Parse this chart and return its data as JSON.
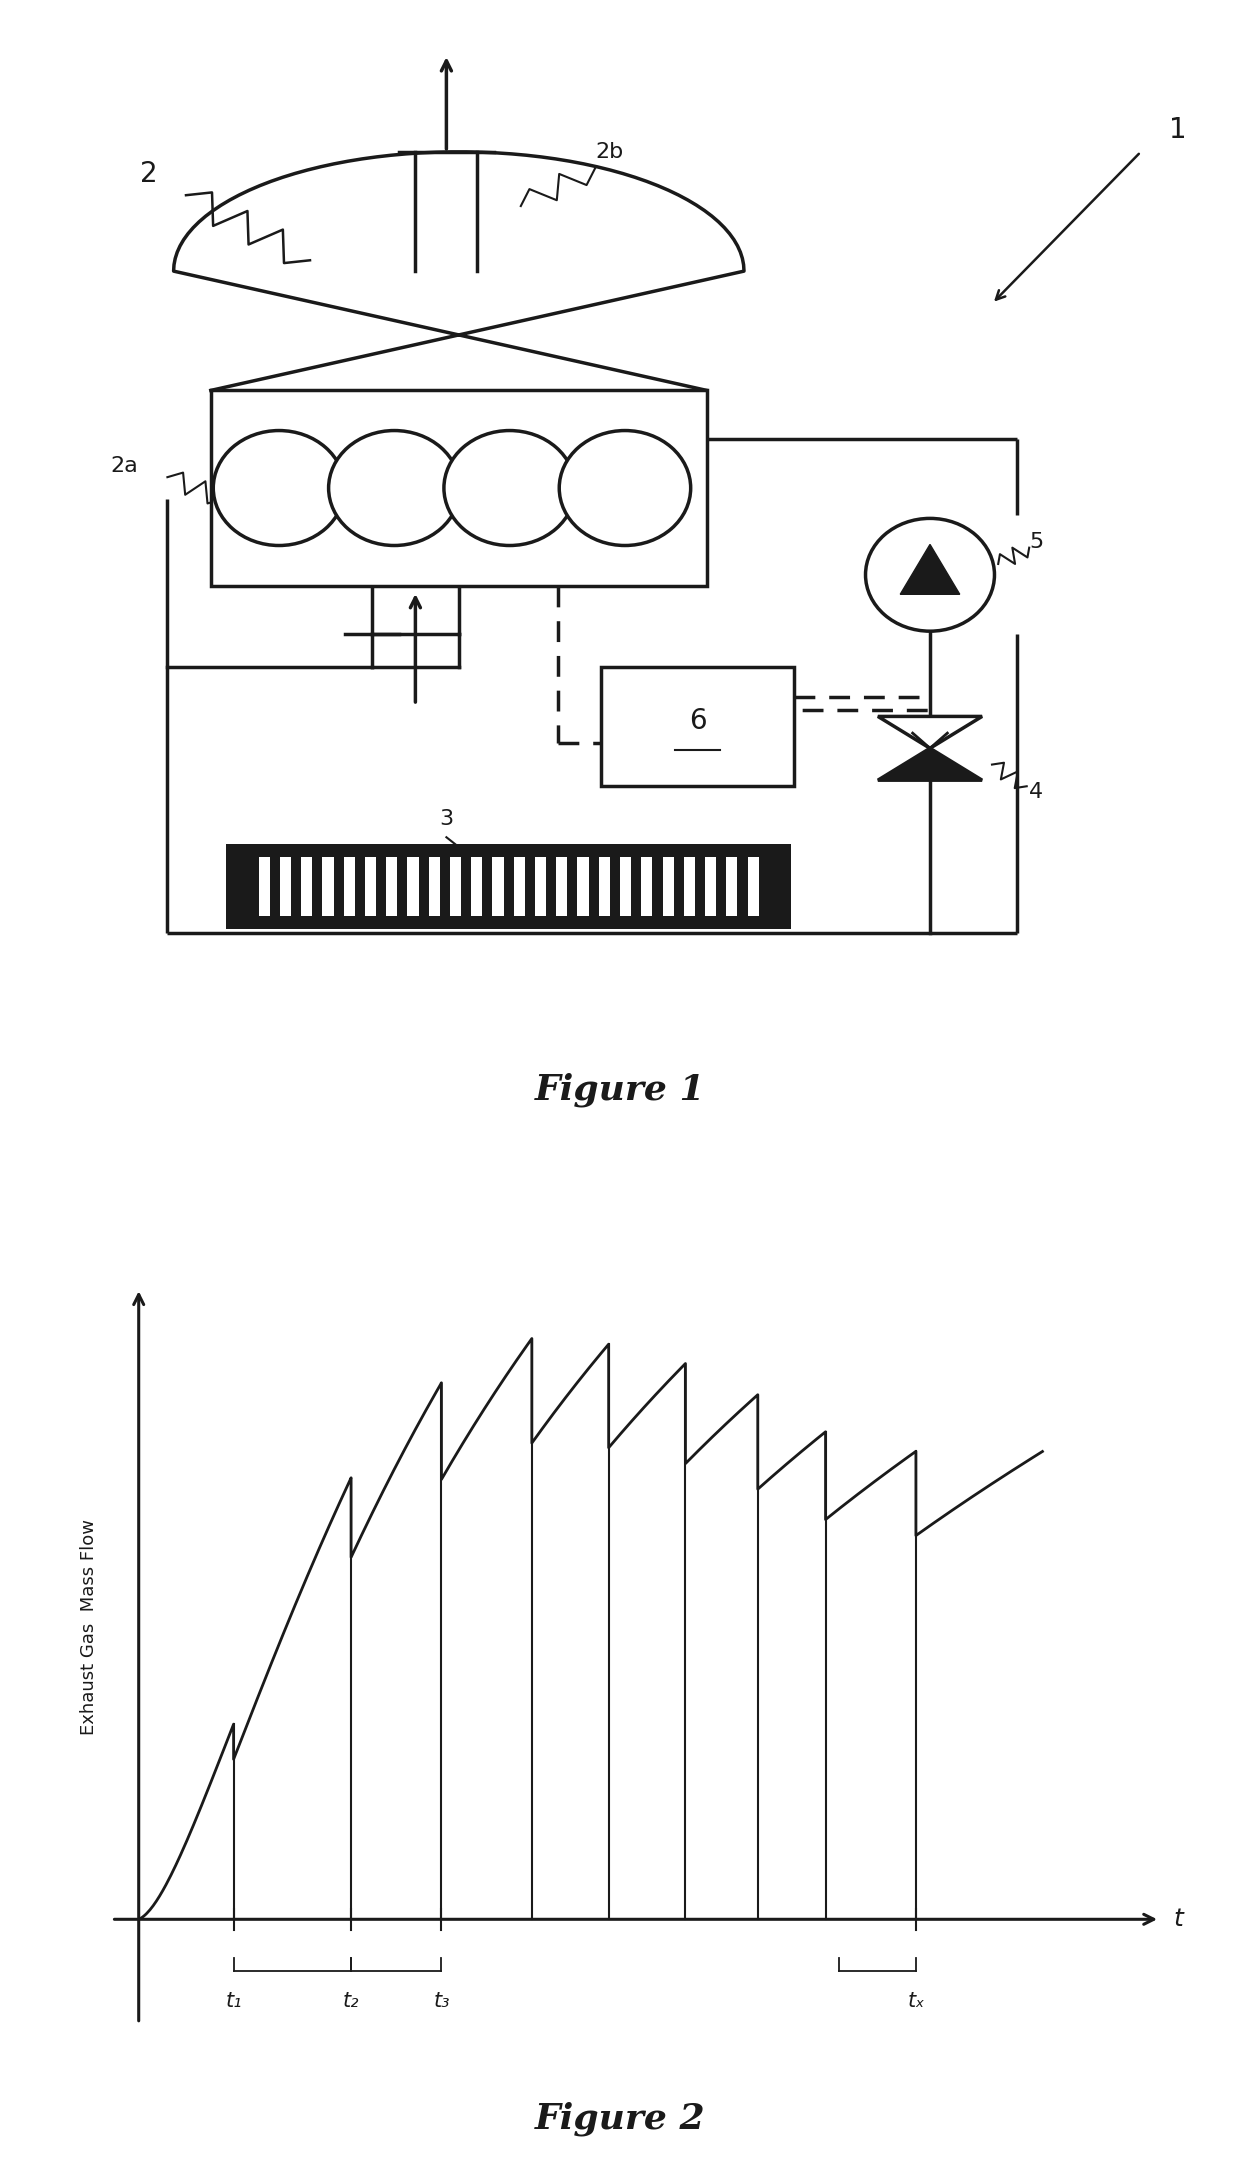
{
  "fig1_title": "Figure 1",
  "fig2_title": "Figure 2",
  "fig2_ylabel": "Exhaust Gas  Mass Flow",
  "fig2_xlabel": "t",
  "fig2_tick_labels": [
    "t₁",
    "t₂",
    "t₃",
    "tₓ"
  ],
  "label_1": "1",
  "label_2": "2",
  "label_2a": "2a",
  "label_2b": "2b",
  "label_3": "3",
  "label_4": "4",
  "label_5": "5",
  "label_6": "6",
  "line_color": "#1a1a1a",
  "bg_color": "#ffffff"
}
